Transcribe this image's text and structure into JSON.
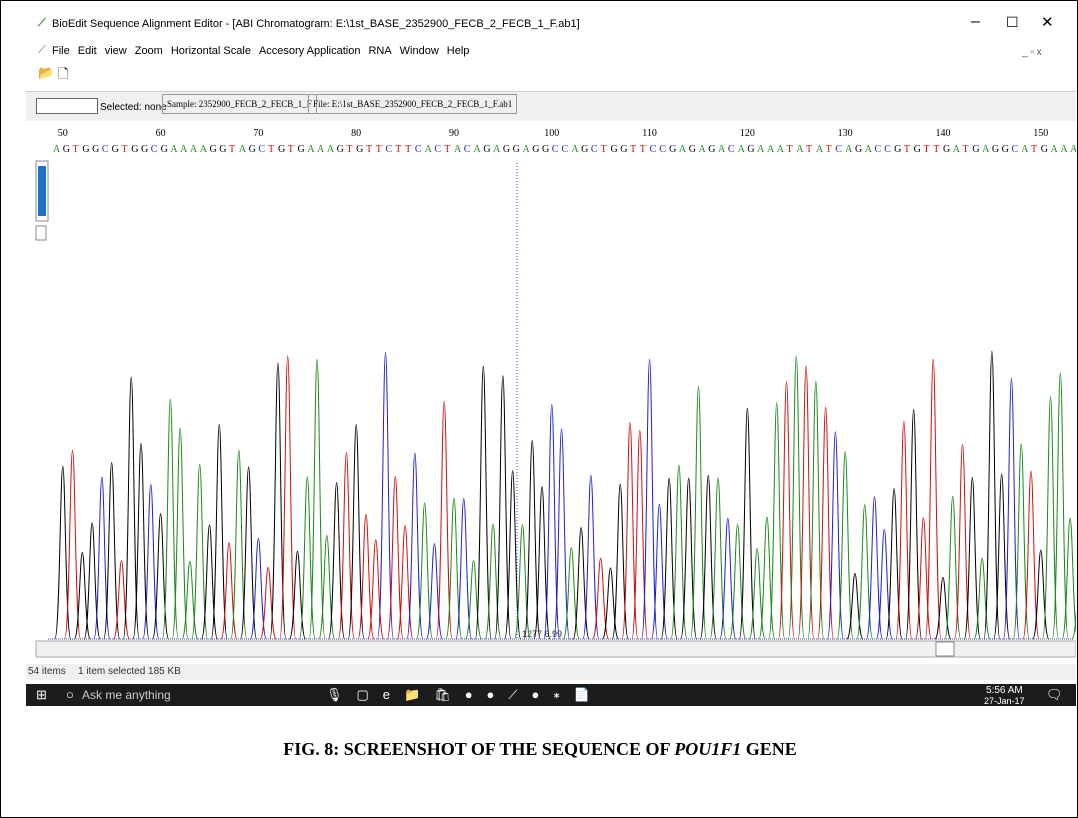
{
  "window_title": "BioEdit Sequence Alignment Editor - [ABI Chromatogram: E:\\1st_BASE_2352900_FECB_2_FECB_1_F.ab1]",
  "menu": [
    "File",
    "Edit",
    "view",
    "Zoom",
    "Horizontal Scale",
    "Accesory Application",
    "RNA",
    "Window",
    "Help"
  ],
  "toolbar": {
    "selected": "Selected: none",
    "sample": "Sample: 2352900_FECB_2_FECB_1_F",
    "file": "File: E:\\1st_BASE_2352900_FECB_2_FECB_1_F.ab1"
  },
  "ruler": [
    50,
    60,
    70,
    80,
    90,
    100,
    110,
    120,
    130,
    140,
    150
  ],
  "sequence": "AGTGGCGTGGCGAAAAGGTAGCTGTGAAAGTGTTCTTCACTACAGAGGAGGCCAGCTGGTTCCGAGAGACAGAAATATATCAGACCGTGTTGATGAGGCATGAAAACATC",
  "scroll_readout": "1277  6.99",
  "status": {
    "items": "54 items",
    "selected": "1 item selected 185 KB"
  },
  "taskbar": {
    "search": "Ask me anything",
    "time": "5:56 AM",
    "date": "27-Jan-17"
  },
  "caption": {
    "prefix": "FIG. 8: SCREENSHOT OF THE SEQUENCE OF ",
    "gene": "POU1F1",
    "suffix": " GENE"
  }
}
